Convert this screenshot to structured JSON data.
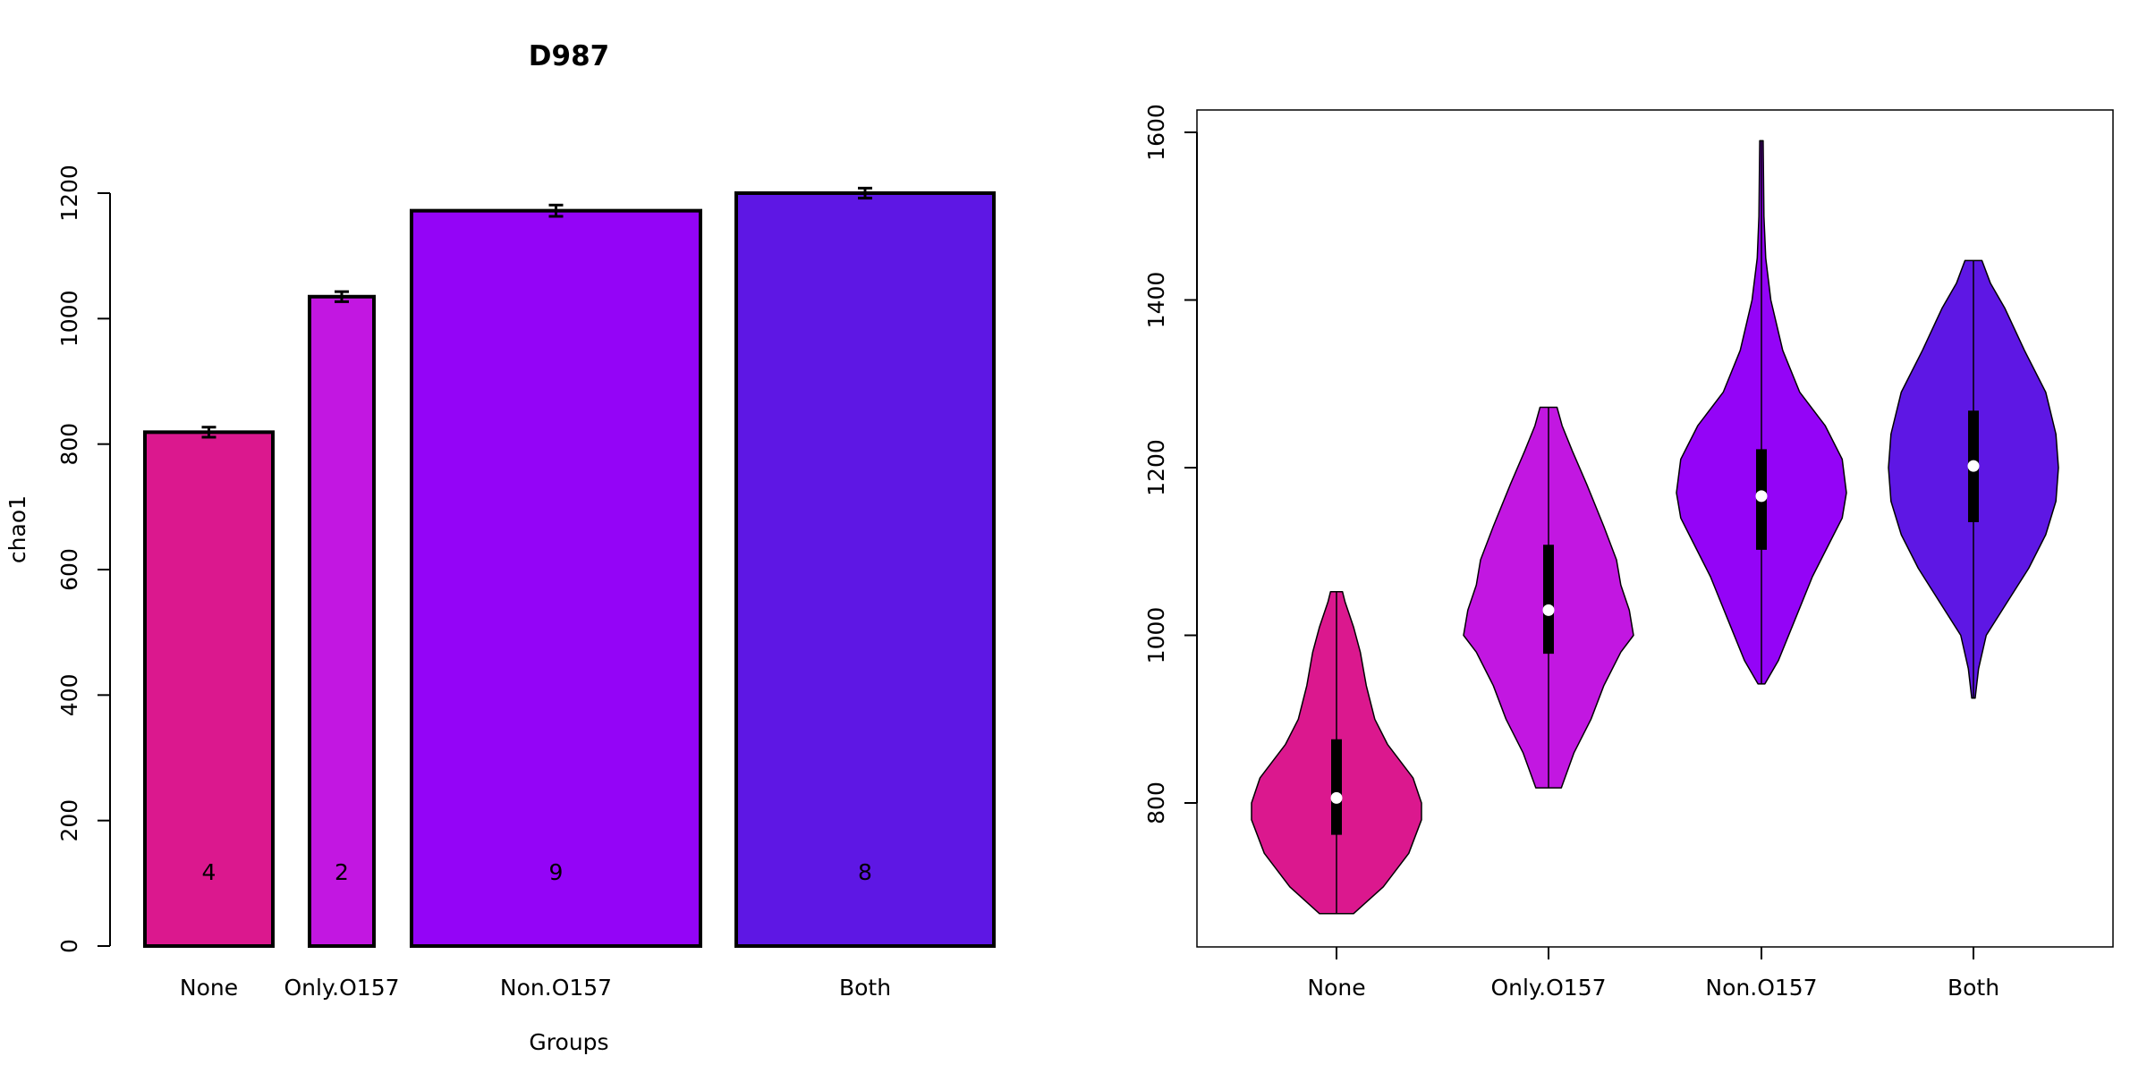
{
  "chart_data": [
    {
      "type": "bar",
      "title": "D987",
      "xlabel": "Groups",
      "ylabel": "chao1",
      "ylim": [
        0,
        1200
      ],
      "yticks": [
        0,
        200,
        400,
        600,
        800,
        1000,
        1200
      ],
      "categories": [
        "None",
        "Only.O157",
        "Non.O157",
        "Both"
      ],
      "values": [
        819,
        1035,
        1172,
        1200
      ],
      "errors": [
        8,
        8,
        9,
        8
      ],
      "counts": [
        "4",
        "2",
        "9",
        "8"
      ],
      "colors": [
        "#DB188E",
        "#C217E1",
        "#9404F7",
        "#5E17E4"
      ],
      "grid": false
    },
    {
      "type": "violin",
      "categories": [
        "None",
        "Only.O157",
        "Non.O157",
        "Both"
      ],
      "ylim": [
        630,
        1630
      ],
      "yticks": [
        800,
        1000,
        1200,
        1400,
        1600
      ],
      "colors": [
        "#DB188E",
        "#C217E1",
        "#9404F7",
        "#5E17E4"
      ],
      "grid": false,
      "series": [
        {
          "min": 668,
          "q1": 762,
          "median": 806,
          "q3": 876,
          "max": 1052,
          "density": [
            [
              668,
              0.2
            ],
            [
              700,
              0.55
            ],
            [
              740,
              0.85
            ],
            [
              780,
              1.0
            ],
            [
              800,
              1.0
            ],
            [
              830,
              0.9
            ],
            [
              870,
              0.6
            ],
            [
              900,
              0.45
            ],
            [
              940,
              0.35
            ],
            [
              980,
              0.28
            ],
            [
              1010,
              0.2
            ],
            [
              1040,
              0.1
            ],
            [
              1052,
              0.07
            ]
          ]
        },
        {
          "min": 818,
          "q1": 978,
          "median": 1030,
          "q3": 1108,
          "max": 1272,
          "density": [
            [
              818,
              0.15
            ],
            [
              860,
              0.3
            ],
            [
              900,
              0.5
            ],
            [
              940,
              0.65
            ],
            [
              980,
              0.85
            ],
            [
              1000,
              1.0
            ],
            [
              1030,
              0.95
            ],
            [
              1060,
              0.85
            ],
            [
              1090,
              0.8
            ],
            [
              1130,
              0.65
            ],
            [
              1180,
              0.45
            ],
            [
              1220,
              0.28
            ],
            [
              1250,
              0.16
            ],
            [
              1272,
              0.1
            ]
          ]
        },
        {
          "min": 942,
          "q1": 1102,
          "median": 1166,
          "q3": 1222,
          "max": 1590,
          "density": [
            [
              942,
              0.04
            ],
            [
              970,
              0.2
            ],
            [
              1020,
              0.4
            ],
            [
              1070,
              0.6
            ],
            [
              1110,
              0.8
            ],
            [
              1140,
              0.95
            ],
            [
              1170,
              1.0
            ],
            [
              1210,
              0.95
            ],
            [
              1250,
              0.75
            ],
            [
              1290,
              0.45
            ],
            [
              1340,
              0.25
            ],
            [
              1400,
              0.11
            ],
            [
              1450,
              0.05
            ],
            [
              1500,
              0.03
            ],
            [
              1590,
              0.02
            ]
          ]
        },
        {
          "min": 925,
          "q1": 1135,
          "median": 1202,
          "q3": 1268,
          "max": 1447,
          "density": [
            [
              925,
              0.02
            ],
            [
              960,
              0.06
            ],
            [
              1000,
              0.15
            ],
            [
              1040,
              0.4
            ],
            [
              1080,
              0.65
            ],
            [
              1120,
              0.85
            ],
            [
              1160,
              0.97
            ],
            [
              1200,
              1.0
            ],
            [
              1240,
              0.97
            ],
            [
              1290,
              0.85
            ],
            [
              1340,
              0.6
            ],
            [
              1390,
              0.37
            ],
            [
              1420,
              0.2
            ],
            [
              1447,
              0.1
            ]
          ]
        }
      ]
    }
  ]
}
